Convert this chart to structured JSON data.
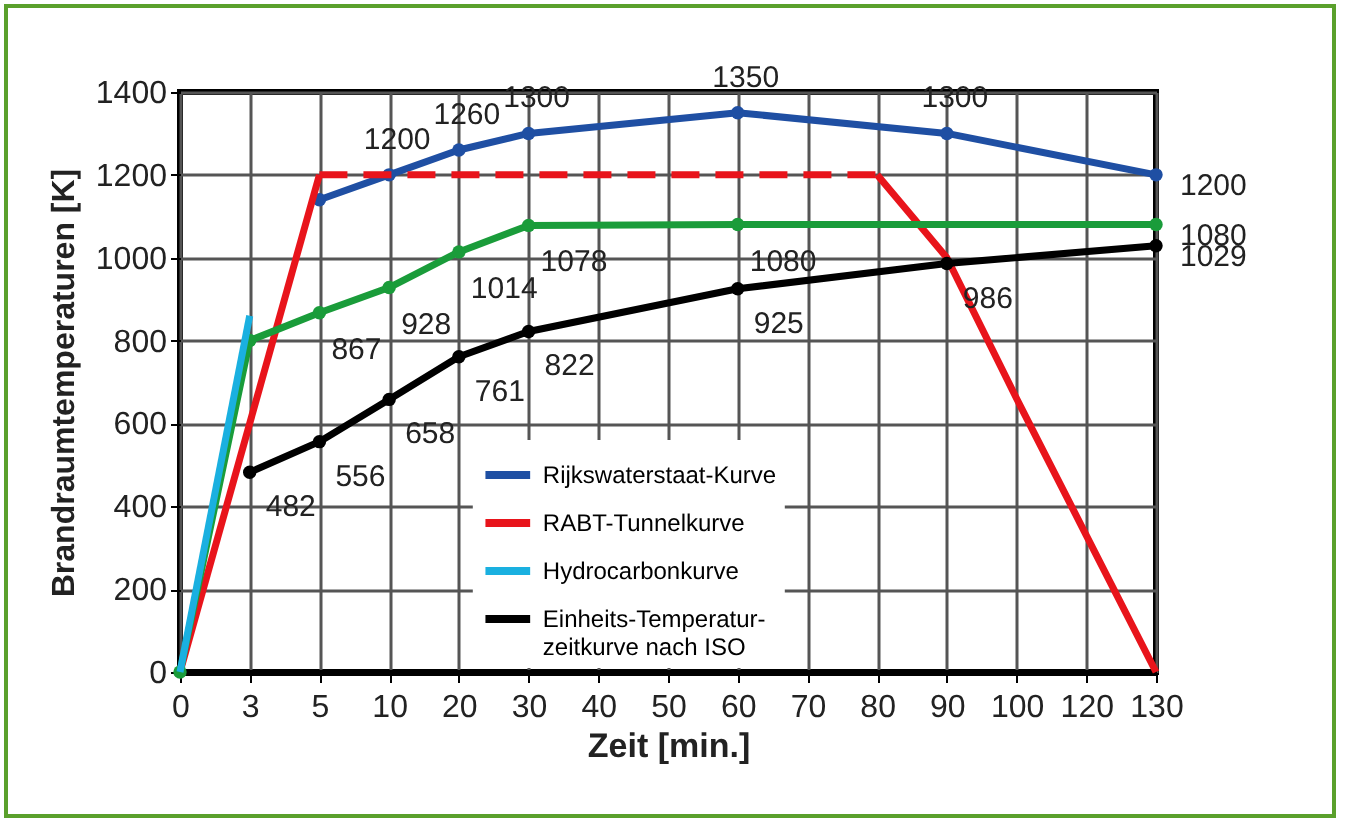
{
  "chart_data": {
    "type": "line",
    "xlabel": "Zeit [min.]",
    "ylabel": "Brandraumtemperaturen [K]",
    "categories": [
      "0",
      "3",
      "5",
      "10",
      "20",
      "30",
      "40",
      "50",
      "60",
      "70",
      "80",
      "90",
      "100",
      "120",
      "130"
    ],
    "ylim": [
      0,
      1400
    ],
    "yticks": [
      0,
      200,
      400,
      600,
      800,
      1000,
      1200,
      1400
    ],
    "grid": true,
    "legend": "bottom",
    "marker": "circle",
    "series": [
      {
        "name": "Rijkswaterstaat-Kurve",
        "color": "#1f4fa3",
        "x": [
          "5",
          "10",
          "20",
          "30",
          "60",
          "90",
          "130"
        ],
        "values": [
          1140,
          1200,
          1260,
          1300,
          1350,
          1300,
          1200
        ],
        "value_labels": [
          null,
          "1200",
          "1260",
          "1300",
          "1350",
          "1300",
          "1200"
        ]
      },
      {
        "name": "RABT-Tunnelkurve",
        "color": "#e8141b",
        "marker": "none",
        "x": [
          "0",
          "5"
        ],
        "values": [
          0,
          1200
        ]
      },
      {
        "color": "#e8141b",
        "marker": "none",
        "line_style": "dashed",
        "x": [
          "5",
          "10",
          "20",
          "30",
          "40",
          "50",
          "60",
          "70",
          "80"
        ],
        "values": [
          1200,
          1200,
          1200,
          1200,
          1200,
          1200,
          1200,
          1200,
          1200
        ]
      },
      {
        "color": "#e8141b",
        "marker": "none",
        "x": [
          "80",
          "90",
          "100",
          "120",
          "130"
        ],
        "values": [
          1200,
          1000,
          660,
          330,
          0
        ]
      },
      {
        "color": "#1a9c3a",
        "x": [
          "0",
          "3",
          "5",
          "10",
          "20",
          "30",
          "60",
          "130"
        ],
        "values": [
          0,
          800,
          867,
          928,
          1014,
          1078,
          1080,
          1080
        ],
        "value_labels": [
          null,
          null,
          "867",
          "928",
          "1014",
          "1078",
          "1080",
          "1080"
        ]
      },
      {
        "name": "Hydrocarbonkurve",
        "color": "#1ab0e0",
        "marker": "none",
        "x": [
          "0",
          "3"
        ],
        "values": [
          0,
          860
        ]
      },
      {
        "name": "Einheits-Temperatur-zeitkurve nach ISO",
        "color": "#000000",
        "x": [
          "3",
          "5",
          "10",
          "20",
          "30",
          "60",
          "90",
          "130"
        ],
        "values": [
          482,
          556,
          658,
          761,
          822,
          925,
          986,
          1029
        ],
        "value_labels": [
          "482",
          "556",
          "658",
          "761",
          "822",
          "925",
          "986",
          "1029"
        ]
      }
    ]
  }
}
